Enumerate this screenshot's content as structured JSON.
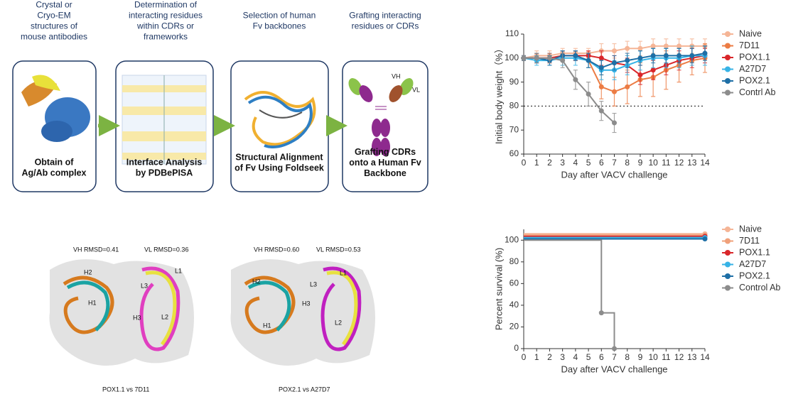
{
  "pipeline": {
    "steps": [
      {
        "heading": "Crystal or Cryo-EM structures of mouse antibodies",
        "label": "Obtain of Ag/Ab complex"
      },
      {
        "heading": "Determination of interacting residues within CDRs or frameworks",
        "label": "Interface Analysis by PDBePISA"
      },
      {
        "heading": "Selection of human Fv backbones",
        "label": "Structural Alignment of Fv Using Foldseek"
      },
      {
        "heading": "Grafting interacting residues or CDRs",
        "label": "Grafting CDRs onto a Human Fv Backbone"
      }
    ],
    "antibody_labels": [
      "VH",
      "VL"
    ]
  },
  "structures": [
    {
      "vh_rmsd": "VH RMSD=0.41",
      "vl_rmsd": "VL RMSD=0.36",
      "caption": "POX1.1 vs 7D11",
      "regions": [
        "H1",
        "H2",
        "H3",
        "L1",
        "L2",
        "L3"
      ]
    },
    {
      "vh_rmsd": "VH RMSD=0.60",
      "vl_rmsd": "VL RMSD=0.53",
      "caption": "POX2.1 vs A27D7",
      "regions": [
        "H1",
        "H2",
        "H3",
        "L1",
        "L2",
        "L3"
      ]
    }
  ],
  "chart_data": [
    {
      "type": "line",
      "xlabel": "Day after VACV challenge",
      "ylabel": "Initial body weight（%）",
      "x": [
        0,
        1,
        2,
        3,
        4,
        5,
        6,
        7,
        8,
        9,
        10,
        11,
        12,
        13,
        14
      ],
      "xlim": [
        0,
        14
      ],
      "xticks": [
        0,
        1,
        2,
        3,
        4,
        5,
        6,
        7,
        8,
        9,
        10,
        11,
        12,
        13,
        14
      ],
      "ylim": [
        60,
        110
      ],
      "yticks": [
        60,
        70,
        80,
        90,
        100,
        110
      ],
      "reference_line": 80,
      "series": [
        {
          "name": "Naive",
          "color": "#f5b596",
          "values": [
            100,
            101,
            101,
            102,
            102,
            102,
            103,
            103,
            104,
            104,
            105,
            105,
            105,
            105,
            105
          ],
          "errors": [
            1,
            2,
            2,
            2,
            2,
            2,
            3,
            3,
            3,
            3,
            3,
            3,
            3,
            3,
            3
          ]
        },
        {
          "name": "7D11",
          "color": "#ec7c44",
          "values": [
            100,
            100,
            100,
            101,
            101,
            99,
            88,
            86,
            88,
            91,
            92,
            95,
            97,
            99,
            100
          ],
          "errors": [
            1,
            2,
            2,
            2,
            2,
            3,
            5,
            6,
            7,
            7,
            8,
            8,
            7,
            6,
            6
          ]
        },
        {
          "name": "POX1.1",
          "color": "#d9262a",
          "values": [
            100,
            100,
            100,
            101,
            101,
            101,
            100,
            98,
            97,
            93,
            95,
            97,
            99,
            100,
            101
          ],
          "errors": [
            1,
            2,
            2,
            2,
            2,
            2,
            3,
            3,
            3,
            4,
            4,
            4,
            4,
            4,
            3
          ]
        },
        {
          "name": "A27D7",
          "color": "#37b3e6",
          "values": [
            100,
            99,
            99,
            100,
            100,
            99,
            95,
            95,
            97,
            99,
            100,
            100,
            100,
            101,
            101
          ],
          "errors": [
            1,
            2,
            2,
            3,
            3,
            3,
            4,
            4,
            4,
            4,
            4,
            4,
            4,
            4,
            4
          ]
        },
        {
          "name": "POX2.1",
          "color": "#1e6fa6",
          "values": [
            100,
            100,
            99,
            101,
            101,
            99,
            96,
            98,
            99,
            100,
            101,
            101,
            101,
            101,
            102
          ],
          "errors": [
            1,
            2,
            2,
            2,
            2,
            3,
            3,
            3,
            3,
            3,
            3,
            3,
            3,
            3,
            3
          ]
        },
        {
          "name": "Contrl Ab",
          "color": "#8c8c8c",
          "values": [
            100,
            100,
            100,
            99,
            91,
            85,
            78,
            73,
            null,
            null,
            null,
            null,
            null,
            null,
            null
          ],
          "errors": [
            1,
            2,
            2,
            3,
            4,
            5,
            4,
            4,
            null,
            null,
            null,
            null,
            null,
            null,
            null
          ]
        }
      ]
    },
    {
      "type": "step",
      "xlabel": "Day after VACV challenge",
      "ylabel": "Percent survival (%)",
      "xlim": [
        0,
        14
      ],
      "xticks": [
        0,
        1,
        2,
        3,
        4,
        5,
        6,
        7,
        8,
        9,
        10,
        11,
        12,
        13,
        14
      ],
      "ylim": [
        0,
        110
      ],
      "yticks": [
        0,
        20,
        40,
        60,
        80,
        100
      ],
      "series": [
        {
          "name": "Naive",
          "color": "#f5b596",
          "x": [
            0,
            14
          ],
          "values": [
            100,
            100
          ]
        },
        {
          "name": "7D11",
          "color": "#f0a07a",
          "x": [
            0,
            14
          ],
          "values": [
            100,
            100
          ]
        },
        {
          "name": "POX1.1",
          "color": "#d9262a",
          "x": [
            0,
            14
          ],
          "values": [
            100,
            100
          ]
        },
        {
          "name": "A27D7",
          "color": "#37b3e6",
          "x": [
            0,
            14
          ],
          "values": [
            100,
            100
          ]
        },
        {
          "name": "POX2.1",
          "color": "#1e6fa6",
          "x": [
            0,
            14
          ],
          "values": [
            100,
            100
          ]
        },
        {
          "name": "Control Ab",
          "color": "#8c8c8c",
          "x": [
            0,
            6,
            7
          ],
          "values": [
            100,
            33,
            0
          ]
        }
      ]
    }
  ]
}
